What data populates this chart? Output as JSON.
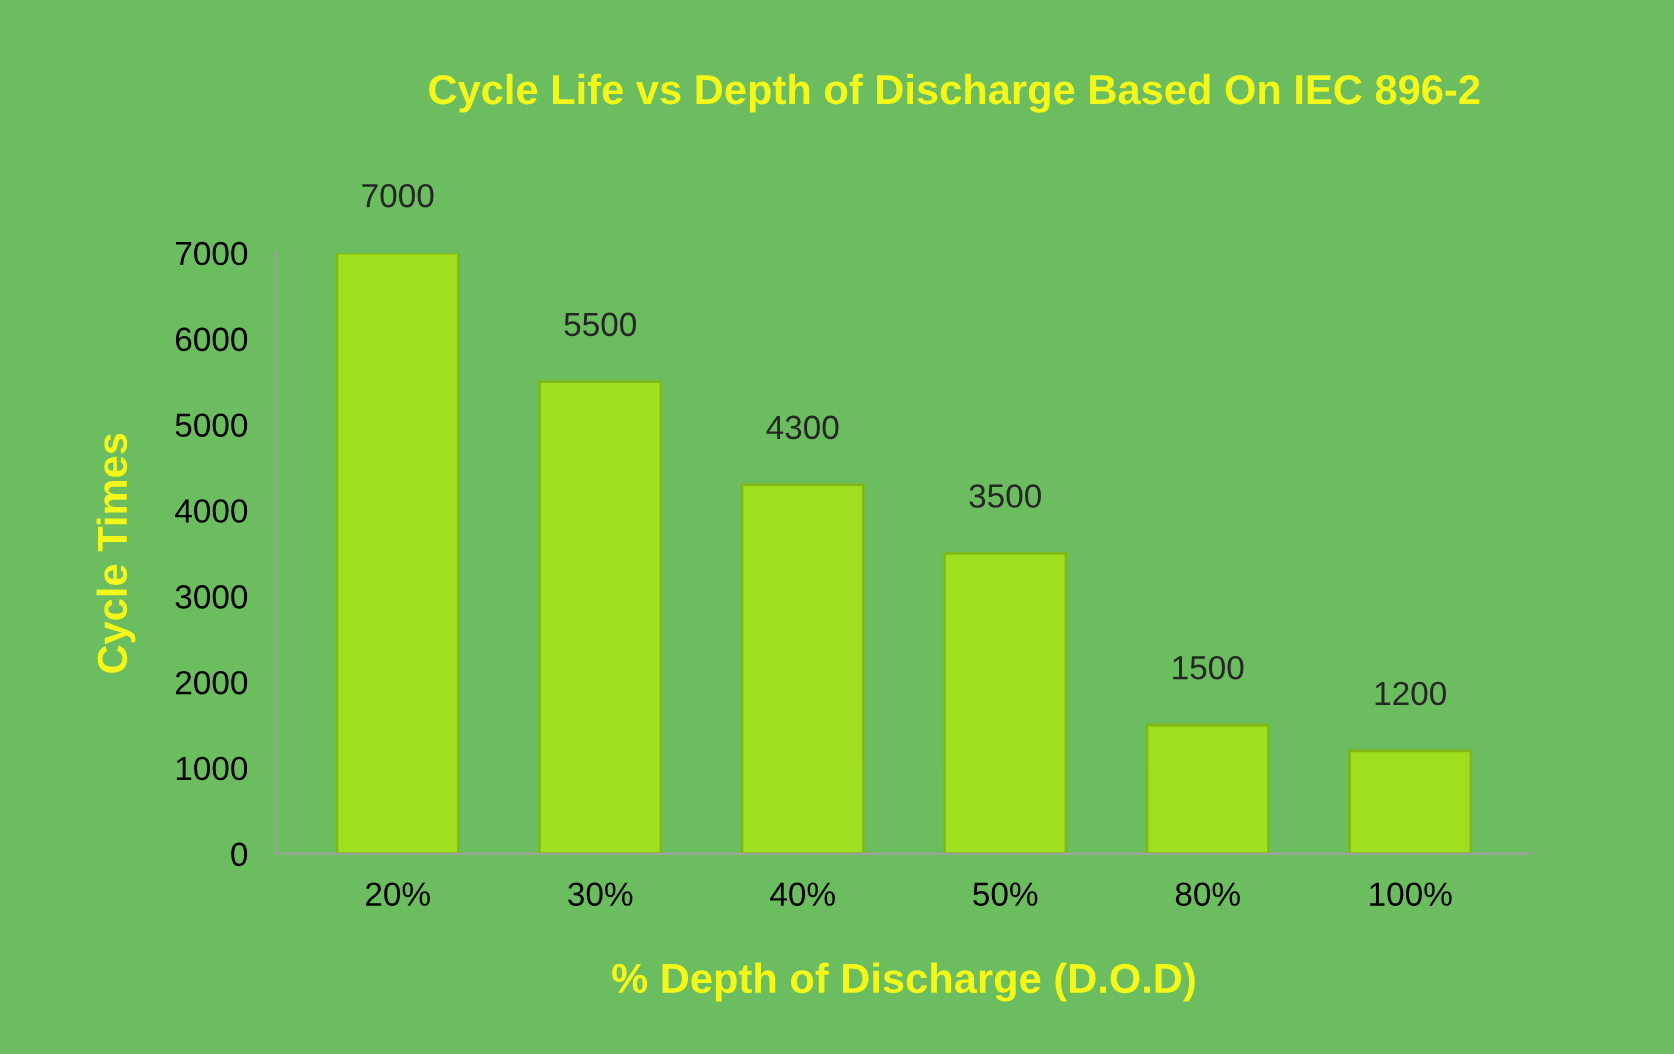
{
  "chart_data": {
    "type": "bar",
    "title": "Cycle Life vs Depth of Discharge Based On IEC 896-2",
    "xlabel": "% Depth of Discharge (D.O.D)",
    "ylabel": "Cycle Times",
    "categories": [
      "20%",
      "30%",
      "40%",
      "50%",
      "80%",
      "100%"
    ],
    "values": [
      7000,
      5500,
      4300,
      3500,
      1500,
      1200
    ],
    "color": "#9ee01e",
    "ylim": [
      0,
      7000
    ],
    "yticks": [
      0,
      1000,
      2000,
      3000,
      4000,
      5000,
      6000,
      7000
    ],
    "data_labels": true,
    "grid": false
  }
}
